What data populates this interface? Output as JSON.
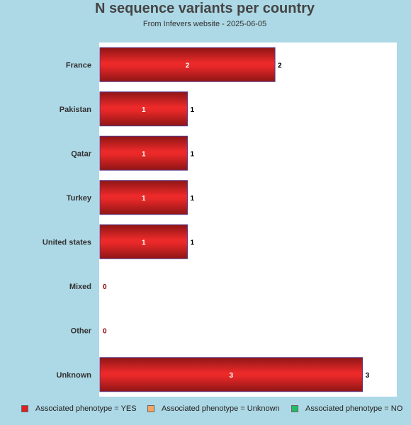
{
  "chart_data": {
    "type": "bar",
    "orientation": "horizontal",
    "title": "N sequence variants per country",
    "subtitle": "From Infevers website - 2025-06-05",
    "categories": [
      "France",
      "Pakistan",
      "Qatar",
      "Turkey",
      "United states",
      "Mixed",
      "Other",
      "Unknown"
    ],
    "series": [
      {
        "name": "Associated phenotype = YES",
        "color": "#dd2222",
        "values": [
          2,
          1,
          1,
          1,
          1,
          0,
          0,
          3
        ]
      },
      {
        "name": "Associated phenotype = Unknown",
        "color": "#f4a460",
        "values": [
          0,
          0,
          0,
          0,
          0,
          0,
          0,
          0
        ]
      },
      {
        "name": "Associated phenotype = NO",
        "color": "#22bb66",
        "values": [
          0,
          0,
          0,
          0,
          0,
          0,
          0,
          0
        ]
      }
    ],
    "totals": [
      2,
      1,
      1,
      1,
      1,
      0,
      0,
      3
    ],
    "xlim": [
      0,
      3.4
    ],
    "grid": false,
    "legend_position": "bottom"
  }
}
